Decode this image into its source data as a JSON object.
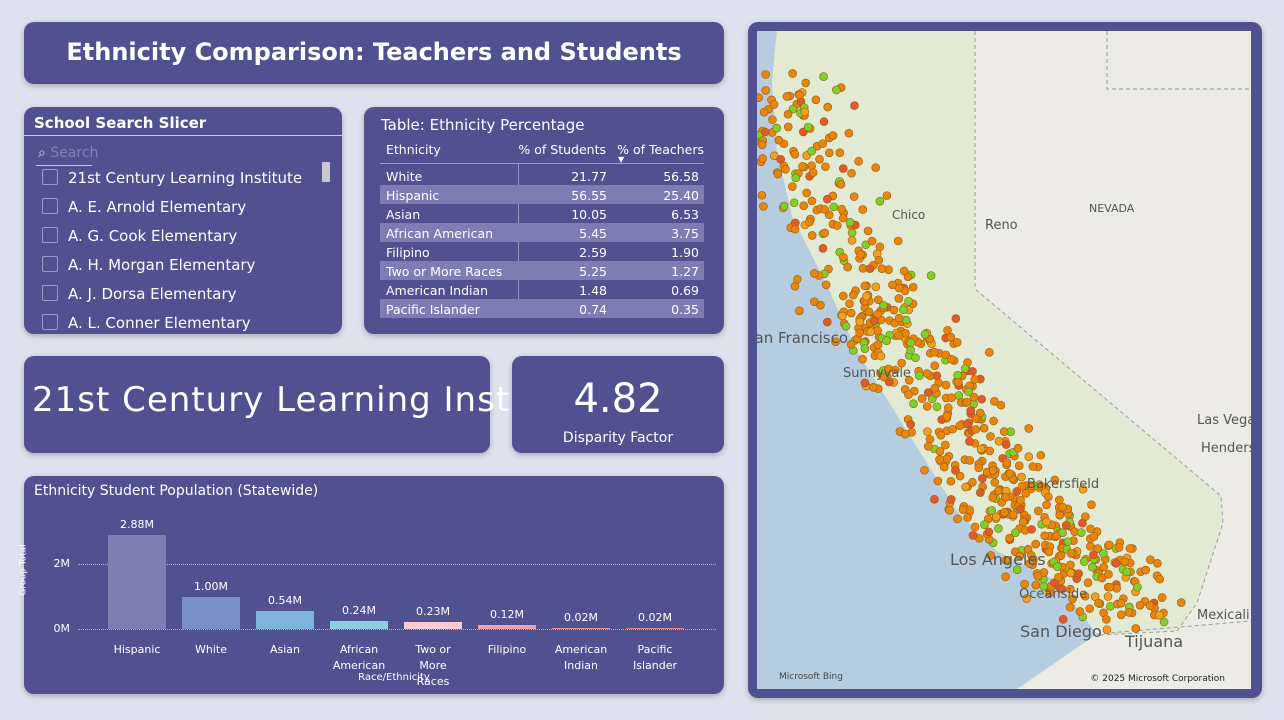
{
  "header": {
    "title": "Ethnicity Comparison: Teachers and Students"
  },
  "slicer": {
    "title": "School Search Slicer",
    "search": "Search",
    "items": [
      "21st Century Learning Institute",
      "A. E. Arnold Elementary",
      "A. G. Cook Elementary",
      "A. H. Morgan Elementary",
      "A. J. Dorsa Elementary",
      "A. L. Conner Elementary"
    ]
  },
  "table": {
    "title": "Table: Ethnicity Percentage",
    "columns": [
      "Ethnicity",
      "% of Students",
      "% of Teachers"
    ],
    "rows": [
      [
        "White",
        "21.77",
        "56.58"
      ],
      [
        "Hispanic",
        "56.55",
        "25.40"
      ],
      [
        "Asian",
        "10.05",
        "6.53"
      ],
      [
        "African American",
        "5.45",
        "3.75"
      ],
      [
        "Filipino",
        "2.59",
        "1.90"
      ],
      [
        "Two or More Races",
        "5.25",
        "1.27"
      ],
      [
        "American Indian",
        "1.48",
        "0.69"
      ],
      [
        "Pacific Islander",
        "0.74",
        "0.35"
      ]
    ]
  },
  "card": {
    "text": "21st Century Learning Inst..."
  },
  "kpi": {
    "value": 4.82,
    "label": "Disparity Factor"
  },
  "chart_data": {
    "type": "bar",
    "title": "Ethnicity Student Population (Statewide)",
    "x_label": "Race/Ethnicity",
    "y_label": "Group Total",
    "categories": [
      "Hispanic",
      "White",
      "Asian",
      "African American",
      "Two or More Races",
      "Filipino",
      "American Indian",
      "Pacific Islander"
    ],
    "values": [
      2.88,
      1.0,
      0.54,
      0.24,
      0.23,
      0.12,
      0.02,
      0.02
    ],
    "value_labels": [
      "2.88M",
      "1.00M",
      "0.54M",
      "0.24M",
      "0.23M",
      "0.12M",
      "0.02M",
      "0.02M"
    ],
    "colors": [
      "#7c7eb2",
      "#7b8ec6",
      "#7fb5dd",
      "#8fcde2",
      "#f8cad6",
      "#f1a3ab",
      "#e88c8c",
      "#e38282"
    ],
    "ylim": [
      0,
      3.6
    ],
    "yticks": [
      {
        "value": 0,
        "label": "0M"
      },
      {
        "value": 2,
        "label": "2M"
      }
    ],
    "grid": true
  },
  "map": {
    "labels": [
      "Chico",
      "Reno",
      "NEVADA",
      "San Francisco",
      "Sunnyvale",
      "Las Vegas",
      "Henderson",
      "Bakersfield",
      "Los Angeles",
      "Oceanside",
      "San Diego",
      "Tijuana",
      "Mexicali"
    ],
    "brand": "Microsoft Bing",
    "copyright": "© 2025 Microsoft Corporation"
  }
}
